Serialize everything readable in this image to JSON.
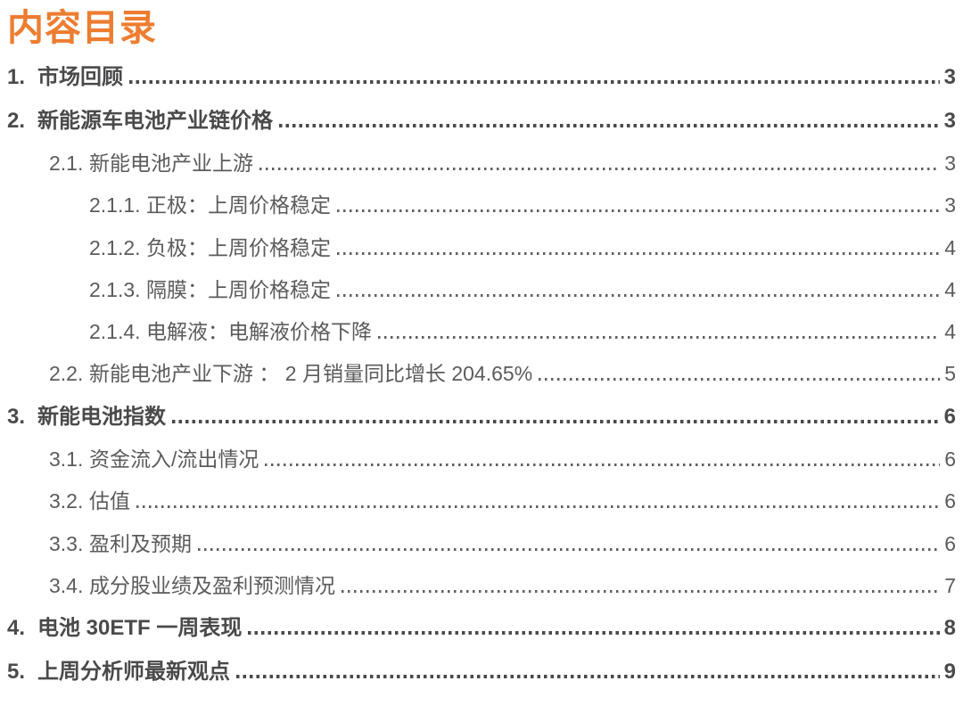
{
  "title": {
    "text": "内容目录"
  },
  "colors": {
    "accent_orange": "#ED7D31",
    "heading_text": "#4A4A4C",
    "body_text": "#5B5B5D",
    "background": "#FFFFFF"
  },
  "toc": {
    "entries": [
      {
        "num": "1.",
        "label": "市场回顾",
        "page": "3",
        "level": 1
      },
      {
        "num": "2.",
        "label": "新能源车电池产业链价格",
        "page": "3",
        "level": 1
      },
      {
        "num": "2.1.",
        "label": "新能电池产业上游",
        "page": "3",
        "level": 2
      },
      {
        "num": "2.1.1.",
        "label": "正极：上周价格稳定",
        "page": "3",
        "level": 3
      },
      {
        "num": "2.1.2.",
        "label": "负极：上周价格稳定",
        "page": "4",
        "level": 3
      },
      {
        "num": "2.1.3.",
        "label": "隔膜：上周价格稳定",
        "page": "4",
        "level": 3
      },
      {
        "num": "2.1.4.",
        "label": "电解液：电解液价格下降",
        "page": "4",
        "level": 3
      },
      {
        "num": "2.2.",
        "label": "新能电池产业下游 ： 2 月销量同比增长 204.65%",
        "page": "5",
        "level": 2
      },
      {
        "num": "3.",
        "label": "新能电池指数",
        "page": "6",
        "level": 1
      },
      {
        "num": "3.1.",
        "label": "资金流入/流出情况",
        "page": "6",
        "level": 2
      },
      {
        "num": "3.2.",
        "label": "估值",
        "page": "6",
        "level": 2
      },
      {
        "num": "3.3.",
        "label": "盈利及预期",
        "page": "6",
        "level": 2
      },
      {
        "num": "3.4.",
        "label": "成分股业绩及盈利预测情况",
        "page": "7",
        "level": 2
      },
      {
        "num": "4.",
        "label": "电池 30ETF 一周表现",
        "page": "8",
        "level": 1
      },
      {
        "num": "5.",
        "label": "上周分析师最新观点",
        "page": "9",
        "level": 1
      }
    ]
  }
}
